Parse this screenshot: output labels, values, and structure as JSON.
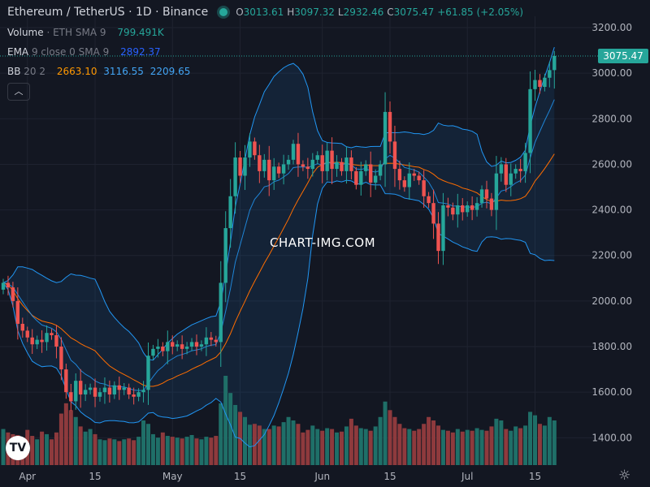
{
  "header": {
    "symbol": "Ethereum / TetherUS · 1D · Binance",
    "o_label": "O",
    "o": "3013.61",
    "h_label": "H",
    "h": "3097.32",
    "l_label": "L",
    "l": "2932.46",
    "c_label": "C",
    "c": "3075.47",
    "change": "+61.85 (+2.05%)"
  },
  "legend": {
    "volume_name": "Volume",
    "volume_params": "· ETH  SMA 9",
    "volume_value": "799.491K",
    "ema_name": "EMA",
    "ema_params": "9  close  0  SMA  9",
    "ema_value": "2892.37",
    "bb_name": "BB",
    "bb_params": "20  2",
    "bb_basis": "2663.10",
    "bb_upper": "3116.55",
    "bb_lower": "2209.65"
  },
  "watermark": "CHART-IMG.COM",
  "logo_text": "TV",
  "colors": {
    "up": "#26a69a",
    "down": "#ef5350",
    "up_volume": "#1f6f68",
    "down_volume": "#8e3a3d",
    "bb_band": "#2196f3",
    "bb_basis": "#ff6d00",
    "background": "#131722",
    "price_label_bg": "#26a69a"
  },
  "chart_data": {
    "type": "candlestick",
    "ylim": [
      1280,
      3250
    ],
    "y_ticks": [
      1400,
      1600,
      1800,
      2000,
      2200,
      2400,
      2600,
      2800,
      3000,
      3200
    ],
    "y_tick_labels": [
      "1400.00",
      "1600.00",
      "1800.00",
      "2000.00",
      "2200.00",
      "2400.00",
      "2600.00",
      "2800.00",
      "3000.00",
      "3200.00"
    ],
    "x_labels": [
      {
        "index": 5,
        "text": "Apr"
      },
      {
        "index": 19,
        "text": "15"
      },
      {
        "index": 35,
        "text": "May"
      },
      {
        "index": 49,
        "text": "15"
      },
      {
        "index": 66,
        "text": "Jun"
      },
      {
        "index": 80,
        "text": "15"
      },
      {
        "index": 96,
        "text": "Jul"
      },
      {
        "index": 110,
        "text": "15"
      }
    ],
    "last_price_label": "3075.47",
    "last_price": 3075.47,
    "closes": [
      2080,
      2060,
      2000,
      1900,
      1870,
      1840,
      1810,
      1830,
      1820,
      1860,
      1850,
      1800,
      1700,
      1600,
      1560,
      1650,
      1590,
      1610,
      1620,
      1580,
      1600,
      1620,
      1590,
      1630,
      1610,
      1620,
      1590,
      1580,
      1600,
      1610,
      1760,
      1790,
      1800,
      1780,
      1820,
      1800,
      1810,
      1790,
      1800,
      1820,
      1800,
      1810,
      1840,
      1830,
      1820,
      2080,
      2320,
      2460,
      2630,
      2550,
      2630,
      2700,
      2640,
      2570,
      2620,
      2530,
      2590,
      2560,
      2600,
      2620,
      2690,
      2600,
      2590,
      2580,
      2620,
      2640,
      2570,
      2660,
      2580,
      2610,
      2570,
      2630,
      2570,
      2510,
      2570,
      2600,
      2520,
      2550,
      2600,
      2830,
      2700,
      2580,
      2530,
      2500,
      2560,
      2550,
      2530,
      2460,
      2430,
      2340,
      2220,
      2420,
      2410,
      2380,
      2420,
      2390,
      2420,
      2400,
      2430,
      2490,
      2450,
      2400,
      2560,
      2600,
      2510,
      2560,
      2580,
      2570,
      2650,
      2930,
      2970,
      2940,
      2980,
      3013.61,
      3075.47
    ],
    "volume_values": [
      420,
      380,
      360,
      350,
      320,
      410,
      340,
      300,
      390,
      360,
      300,
      380,
      600,
      720,
      640,
      560,
      450,
      390,
      420,
      360,
      300,
      290,
      310,
      300,
      280,
      300,
      310,
      290,
      330,
      520,
      480,
      360,
      320,
      380,
      340,
      330,
      320,
      310,
      330,
      350,
      310,
      300,
      330,
      320,
      340,
      720,
      1040,
      840,
      700,
      620,
      560,
      470,
      480,
      460,
      420,
      420,
      460,
      450,
      500,
      560,
      520,
      480,
      380,
      410,
      460,
      420,
      400,
      430,
      420,
      380,
      390,
      450,
      540,
      460,
      430,
      420,
      400,
      450,
      560,
      740,
      640,
      560,
      480,
      430,
      420,
      400,
      420,
      480,
      560,
      520,
      460,
      410,
      400,
      380,
      420,
      390,
      410,
      400,
      430,
      410,
      400,
      450,
      540,
      520,
      420,
      400,
      450,
      430,
      460,
      620,
      580,
      480,
      460,
      560,
      520
    ]
  }
}
